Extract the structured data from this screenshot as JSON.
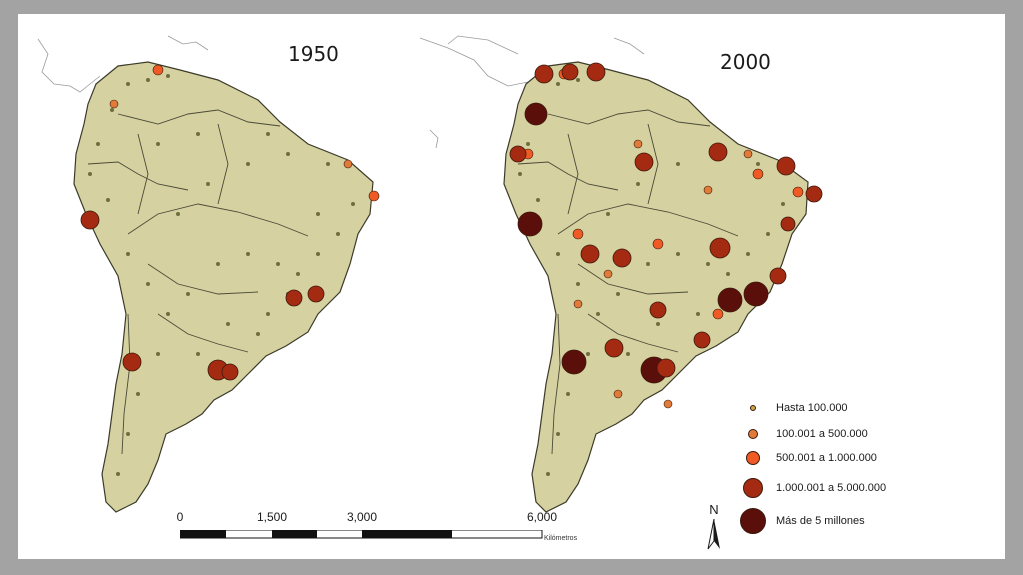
{
  "maps": [
    {
      "year": "1950"
    },
    {
      "year": "2000"
    }
  ],
  "legend": [
    {
      "label": "Hasta 100.000",
      "color": "#c9a24a"
    },
    {
      "label": "100.001 a 500.000",
      "color": "#e07b39"
    },
    {
      "label": "500.001 a 1.000.000",
      "color": "#f05a25"
    },
    {
      "label": "1.000.001 a 5.000.000",
      "color": "#a52a12"
    },
    {
      "label": "Más de 5 millones",
      "color": "#5a0f0a"
    }
  ],
  "scale": {
    "ticks": [
      "0",
      "1,500",
      "3,000",
      "6,000"
    ],
    "unit": "Kilómetros"
  },
  "north": "N",
  "colors": {
    "land": "#d6d1a0",
    "border": "#3b3b2a",
    "background": "#ffffff",
    "frame": "#a3a3a3"
  }
}
